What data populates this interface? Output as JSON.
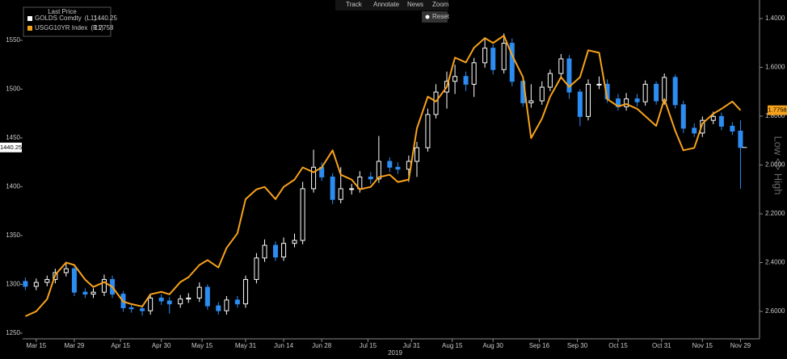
{
  "chart_data": {
    "type": "candlestick",
    "legend_title": "Last Price",
    "x_axis_label": "2019",
    "y2_direction_label": "Low <> High",
    "toolbar": {
      "items": [
        "Track",
        "Annotate",
        "News",
        "Zoom"
      ],
      "reset": "Reset"
    },
    "xlim": [
      "2019-03-10",
      "2019-12-06"
    ],
    "xticks": [
      {
        "value": "2019-03-15",
        "label": "Mar 15"
      },
      {
        "value": "2019-03-29",
        "label": "Mar 29"
      },
      {
        "value": "2019-04-15",
        "label": "Apr 15"
      },
      {
        "value": "2019-04-30",
        "label": "Apr 30"
      },
      {
        "value": "2019-05-15",
        "label": "May 15"
      },
      {
        "value": "2019-05-31",
        "label": "May 31"
      },
      {
        "value": "2019-06-14",
        "label": "Jun 14"
      },
      {
        "value": "2019-06-28",
        "label": "Jun 28"
      },
      {
        "value": "2019-07-15",
        "label": "Jul 15"
      },
      {
        "value": "2019-07-31",
        "label": "Jul 31"
      },
      {
        "value": "2019-08-15",
        "label": "Aug 15"
      },
      {
        "value": "2019-08-30",
        "label": "Aug 30"
      },
      {
        "value": "2019-09-16",
        "label": "Sep 16"
      },
      {
        "value": "2019-09-30",
        "label": "Sep 30"
      },
      {
        "value": "2019-10-15",
        "label": "Oct 15"
      },
      {
        "value": "2019-10-31",
        "label": "Oct 31"
      },
      {
        "value": "2019-11-15",
        "label": "Nov 15"
      },
      {
        "value": "2019-11-29",
        "label": "Nov 29"
      }
    ],
    "ylim": [
      1244.2,
      1591.3
    ],
    "yticks": [
      1250,
      1300,
      1350,
      1400,
      1450,
      1500,
      1550
    ],
    "y2lim": [
      1.324,
      2.7125
    ],
    "y2_inverted": true,
    "y2ticks": [
      {
        "value": 1.4,
        "label": "1.4000"
      },
      {
        "value": 1.6,
        "label": "1.6000"
      },
      {
        "value": 1.8,
        "label": "1.8000"
      },
      {
        "value": 2.0,
        "label": "2.0000"
      },
      {
        "value": 2.2,
        "label": "2.2000"
      },
      {
        "value": 2.4,
        "label": "2.4000"
      },
      {
        "value": 2.6,
        "label": "2.6000"
      }
    ],
    "x": [
      "2019-03-11",
      "2019-03-15",
      "2019-03-19",
      "2019-03-22",
      "2019-03-26",
      "2019-03-29",
      "2019-04-02",
      "2019-04-05",
      "2019-04-09",
      "2019-04-12",
      "2019-04-16",
      "2019-04-19",
      "2019-04-23",
      "2019-04-26",
      "2019-04-30",
      "2019-05-03",
      "2019-05-07",
      "2019-05-10",
      "2019-05-14",
      "2019-05-17",
      "2019-05-21",
      "2019-05-24",
      "2019-05-28",
      "2019-05-31",
      "2019-06-04",
      "2019-06-07",
      "2019-06-11",
      "2019-06-14",
      "2019-06-18",
      "2019-06-21",
      "2019-06-25",
      "2019-06-28",
      "2019-07-02",
      "2019-07-05",
      "2019-07-09",
      "2019-07-12",
      "2019-07-16",
      "2019-07-19",
      "2019-07-23",
      "2019-07-26",
      "2019-07-30",
      "2019-08-02",
      "2019-08-06",
      "2019-08-09",
      "2019-08-13",
      "2019-08-16",
      "2019-08-20",
      "2019-08-23",
      "2019-08-27",
      "2019-08-30",
      "2019-09-03",
      "2019-09-06",
      "2019-09-10",
      "2019-09-13",
      "2019-09-17",
      "2019-09-20",
      "2019-09-24",
      "2019-09-27",
      "2019-10-01",
      "2019-10-04",
      "2019-10-08",
      "2019-10-11",
      "2019-10-15",
      "2019-10-18",
      "2019-10-22",
      "2019-10-25",
      "2019-10-29",
      "2019-11-01",
      "2019-11-05",
      "2019-11-08",
      "2019-11-12",
      "2019-11-15",
      "2019-11-19",
      "2019-11-22",
      "2019-11-26",
      "2019-11-29"
    ],
    "series": [
      {
        "name": "GOLDS Comdty",
        "legend_tag": "(L1)",
        "color": "#ffffff",
        "up_color": "#ffffff",
        "down_color": "#2d8cf0",
        "open": [
          1303,
          1298,
          1302,
          1305,
          1312,
          1316,
          1292,
          1290,
          1292,
          1305,
          1290,
          1276,
          1275,
          1273,
          1286,
          1283,
          1280,
          1285,
          1286,
          1297,
          1278,
          1273,
          1284,
          1280,
          1305,
          1327,
          1340,
          1328,
          1342,
          1345,
          1398,
          1420,
          1410,
          1387,
          1398,
          1398,
          1410,
          1408,
          1426,
          1420,
          1418,
          1426,
          1440,
          1474,
          1497,
          1508,
          1513,
          1505,
          1527,
          1542,
          1520,
          1547,
          1508,
          1486,
          1488,
          1502,
          1516,
          1531,
          1497,
          1472,
          1505,
          1505,
          1490,
          1482,
          1490,
          1487,
          1505,
          1488,
          1512,
          1484,
          1460,
          1455,
          1468,
          1472,
          1462,
          1457
        ],
        "high": [
          1307,
          1306,
          1309,
          1316,
          1322,
          1318,
          1296,
          1296,
          1310,
          1309,
          1293,
          1280,
          1279,
          1290,
          1290,
          1287,
          1289,
          1291,
          1302,
          1300,
          1282,
          1288,
          1288,
          1309,
          1332,
          1346,
          1344,
          1348,
          1352,
          1405,
          1438,
          1425,
          1414,
          1420,
          1403,
          1416,
          1415,
          1452,
          1430,
          1425,
          1432,
          1446,
          1480,
          1505,
          1518,
          1525,
          1518,
          1532,
          1553,
          1546,
          1557,
          1552,
          1512,
          1505,
          1508,
          1520,
          1536,
          1535,
          1500,
          1510,
          1513,
          1510,
          1495,
          1496,
          1495,
          1509,
          1508,
          1516,
          1515,
          1488,
          1465,
          1472,
          1477,
          1476,
          1466,
          1468
        ],
        "low": [
          1294,
          1294,
          1298,
          1301,
          1308,
          1288,
          1286,
          1286,
          1288,
          1286,
          1272,
          1271,
          1268,
          1269,
          1279,
          1270,
          1276,
          1281,
          1282,
          1274,
          1269,
          1269,
          1276,
          1276,
          1301,
          1323,
          1324,
          1324,
          1338,
          1341,
          1394,
          1406,
          1382,
          1383,
          1392,
          1394,
          1403,
          1404,
          1415,
          1413,
          1405,
          1410,
          1436,
          1470,
          1480,
          1495,
          1498,
          1492,
          1522,
          1515,
          1516,
          1503,
          1482,
          1481,
          1484,
          1498,
          1512,
          1490,
          1462,
          1468,
          1500,
          1486,
          1478,
          1478,
          1482,
          1483,
          1484,
          1484,
          1480,
          1455,
          1451,
          1451,
          1464,
          1458,
          1453,
          1398
        ],
        "close": [
          1298,
          1302,
          1305,
          1312,
          1316,
          1292,
          1290,
          1292,
          1305,
          1290,
          1276,
          1275,
          1273,
          1286,
          1283,
          1280,
          1285,
          1286,
          1297,
          1278,
          1273,
          1284,
          1280,
          1305,
          1327,
          1340,
          1328,
          1342,
          1345,
          1398,
          1420,
          1410,
          1387,
          1398,
          1398,
          1410,
          1408,
          1426,
          1420,
          1418,
          1426,
          1440,
          1474,
          1497,
          1508,
          1513,
          1505,
          1527,
          1542,
          1520,
          1547,
          1508,
          1486,
          1488,
          1502,
          1516,
          1531,
          1497,
          1472,
          1505,
          1505,
          1490,
          1482,
          1490,
          1487,
          1505,
          1488,
          1512,
          1484,
          1460,
          1455,
          1468,
          1472,
          1462,
          1457,
          1440.25
        ]
      },
      {
        "name": "USGG10YR Index",
        "legend_tag": "(R1)",
        "type": "line",
        "axis": "y2",
        "color": "#f7a21b",
        "values": [
          2.62,
          2.6,
          2.55,
          2.45,
          2.4,
          2.41,
          2.47,
          2.5,
          2.48,
          2.5,
          2.56,
          2.57,
          2.58,
          2.53,
          2.52,
          2.53,
          2.48,
          2.46,
          2.41,
          2.39,
          2.42,
          2.34,
          2.28,
          2.14,
          2.1,
          2.09,
          2.14,
          2.09,
          2.06,
          2.01,
          2.03,
          2.01,
          1.94,
          2.04,
          2.06,
          2.1,
          2.09,
          2.05,
          2.04,
          2.07,
          2.06,
          1.85,
          1.72,
          1.74,
          1.68,
          1.56,
          1.58,
          1.52,
          1.48,
          1.5,
          1.47,
          1.55,
          1.64,
          1.89,
          1.81,
          1.72,
          1.64,
          1.68,
          1.64,
          1.53,
          1.54,
          1.73,
          1.76,
          1.75,
          1.77,
          1.8,
          1.84,
          1.73,
          1.86,
          1.94,
          1.93,
          1.83,
          1.79,
          1.77,
          1.74,
          1.7758
        ]
      }
    ]
  }
}
